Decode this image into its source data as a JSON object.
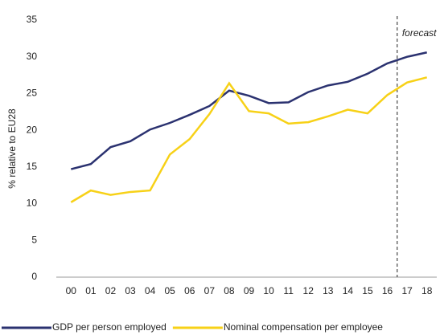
{
  "chart_data": {
    "type": "line",
    "y_label": "% relative to EU28",
    "annotation": "forecast",
    "forecast_from": "17",
    "categories": [
      "00",
      "01",
      "02",
      "03",
      "04",
      "05",
      "06",
      "07",
      "08",
      "09",
      "10",
      "11",
      "12",
      "13",
      "14",
      "15",
      "16",
      "17",
      "18"
    ],
    "series": [
      {
        "name": "GDP per person employed",
        "color": "#2b3270",
        "values": [
          14.7,
          15.4,
          17.7,
          18.5,
          20.1,
          21.0,
          22.1,
          23.3,
          25.4,
          24.7,
          23.7,
          23.8,
          25.2,
          26.1,
          26.6,
          27.7,
          29.1,
          30.0,
          30.6
        ]
      },
      {
        "name": "Nominal compensation per employee",
        "color": "#f7d117",
        "values": [
          10.2,
          11.8,
          11.2,
          11.6,
          11.8,
          16.7,
          18.8,
          22.2,
          26.4,
          22.6,
          22.3,
          20.9,
          21.1,
          21.9,
          22.8,
          22.3,
          24.8,
          26.5,
          27.2
        ]
      }
    ],
    "ylim": [
      0,
      35
    ],
    "yticks": [
      0,
      5,
      10,
      15,
      20,
      25,
      30,
      35
    ],
    "grid": false
  }
}
